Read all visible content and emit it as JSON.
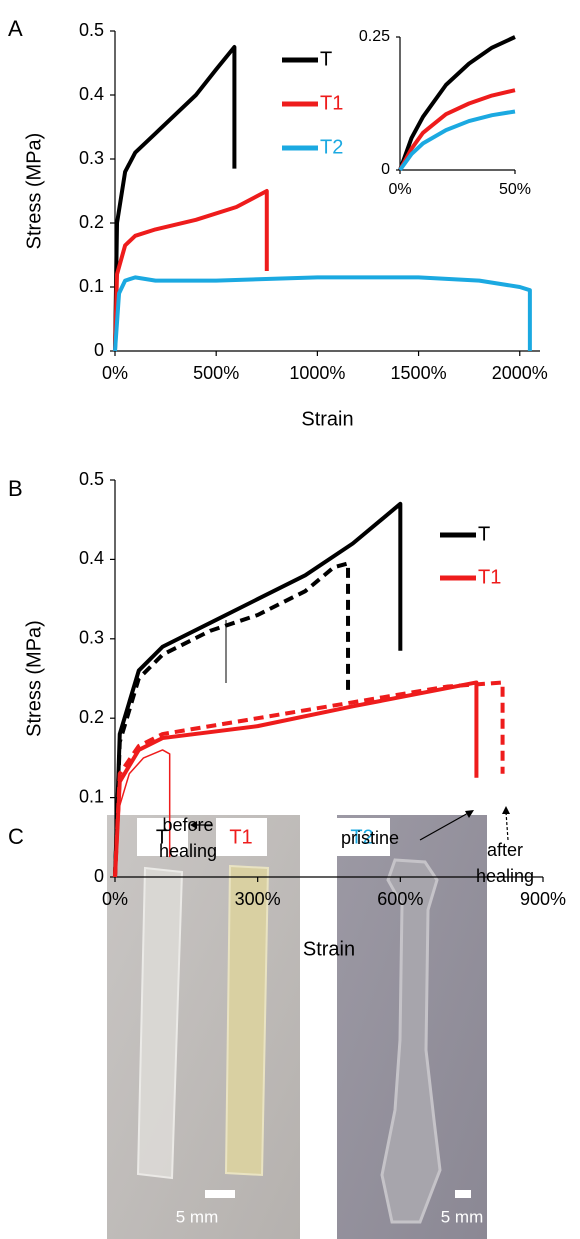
{
  "panel_labels": [
    "A",
    "B",
    "C"
  ],
  "chart_data": [
    {
      "type": "line",
      "xlabel": "Strain",
      "ylabel": "Stress (MPa)",
      "legend": "upper center",
      "xlim": [
        0,
        2100
      ],
      "ylim": [
        0,
        0.5
      ],
      "xticks": [
        {
          "value": 0,
          "label": "0%"
        },
        {
          "value": 500,
          "label": "500%"
        },
        {
          "value": 1000,
          "label": "1000%"
        },
        {
          "value": 1500,
          "label": "1500%"
        },
        {
          "value": 2000,
          "label": "2000%"
        }
      ],
      "yticks": [
        0,
        0.1,
        0.2,
        0.3,
        0.4,
        0.5
      ],
      "series": [
        {
          "name": "T",
          "color": "#000000",
          "line_width": 4,
          "x": [
            0,
            10,
            50,
            100,
            200,
            300,
            400,
            500,
            590,
            590
          ],
          "values": [
            0,
            0.2,
            0.28,
            0.31,
            0.34,
            0.37,
            0.4,
            0.44,
            0.475,
            0.285
          ]
        },
        {
          "name": "T1",
          "color": "#ee1c1c",
          "line_width": 4,
          "x": [
            0,
            10,
            50,
            100,
            200,
            400,
            600,
            750,
            750
          ],
          "values": [
            0,
            0.12,
            0.165,
            0.18,
            0.19,
            0.205,
            0.225,
            0.25,
            0.125
          ]
        },
        {
          "name": "T2",
          "color": "#1ba9e1",
          "line_width": 4,
          "x": [
            0,
            20,
            50,
            100,
            200,
            500,
            1000,
            1500,
            1800,
            2000,
            2050,
            2050
          ],
          "values": [
            0,
            0.09,
            0.11,
            0.115,
            0.11,
            0.11,
            0.115,
            0.115,
            0.11,
            0.1,
            0.095,
            0
          ]
        }
      ]
    },
    {
      "type": "line",
      "xlim": [
        0,
        50
      ],
      "ylim": [
        0,
        0.25
      ],
      "xticks": [
        {
          "value": 0,
          "label": "0%"
        },
        {
          "value": 50,
          "label": "50%"
        }
      ],
      "yticks": [
        0,
        0.25
      ],
      "series": [
        {
          "color": "#000000",
          "line_width": 4,
          "x": [
            0,
            5,
            10,
            20,
            30,
            40,
            50
          ],
          "values": [
            0,
            0.06,
            0.1,
            0.16,
            0.2,
            0.23,
            0.25
          ]
        },
        {
          "color": "#ee1c1c",
          "line_width": 4,
          "x": [
            0,
            5,
            10,
            20,
            30,
            40,
            50
          ],
          "values": [
            0,
            0.04,
            0.07,
            0.105,
            0.125,
            0.14,
            0.15
          ]
        },
        {
          "color": "#1ba9e1",
          "line_width": 4,
          "x": [
            0,
            5,
            10,
            20,
            30,
            40,
            50
          ],
          "values": [
            0,
            0.03,
            0.05,
            0.075,
            0.092,
            0.103,
            0.11
          ]
        }
      ]
    },
    {
      "type": "line",
      "xlabel": "Strain",
      "ylabel": "Stress (MPa)",
      "legend": "upper right",
      "xlim": [
        0,
        900
      ],
      "ylim": [
        0,
        0.5
      ],
      "xticks": [
        {
          "value": 0,
          "label": "0%"
        },
        {
          "value": 300,
          "label": "300%"
        },
        {
          "value": 600,
          "label": "600%"
        },
        {
          "value": 900,
          "label": "900%"
        }
      ],
      "yticks": [
        0,
        0.1,
        0.2,
        0.3,
        0.4,
        0.5
      ],
      "annotations": [
        "before healing",
        "pristine",
        "after healing"
      ],
      "series": [
        {
          "name": "T",
          "color": "#000000",
          "line_width": 4,
          "x": [
            0,
            10,
            50,
            100,
            200,
            300,
            400,
            500,
            600,
            600
          ],
          "values": [
            0,
            0.18,
            0.26,
            0.29,
            0.32,
            0.35,
            0.38,
            0.42,
            0.47,
            0.285
          ]
        },
        {
          "color": "#000000",
          "line_width": 4,
          "dash": true,
          "x": [
            0,
            10,
            50,
            100,
            200,
            300,
            400,
            460,
            490,
            490
          ],
          "values": [
            0,
            0.17,
            0.25,
            0.28,
            0.31,
            0.33,
            0.36,
            0.39,
            0.395,
            0.235
          ]
        },
        {
          "name": "T1",
          "color": "#ee1c1c",
          "line_width": 4,
          "x": [
            0,
            10,
            50,
            100,
            300,
            500,
            760,
            760
          ],
          "values": [
            0,
            0.12,
            0.16,
            0.175,
            0.19,
            0.215,
            0.245,
            0.125
          ]
        },
        {
          "color": "#ee1c1c",
          "line_width": 4,
          "dash": true,
          "x": [
            0,
            10,
            50,
            100,
            300,
            500,
            700,
            815,
            815
          ],
          "values": [
            0,
            0.13,
            0.165,
            0.18,
            0.2,
            0.22,
            0.24,
            0.245,
            0.13
          ]
        },
        {
          "color": "#ee1c1c",
          "line_width": 1.5,
          "x": [
            0,
            10,
            30,
            60,
            100,
            115,
            115
          ],
          "values": [
            0,
            0.09,
            0.13,
            0.15,
            0.16,
            0.155,
            0.025
          ]
        }
      ]
    }
  ],
  "photos": {
    "labels": [
      "T",
      "T1",
      "T2"
    ],
    "scale_bars": [
      "5 mm",
      "5 mm"
    ]
  }
}
